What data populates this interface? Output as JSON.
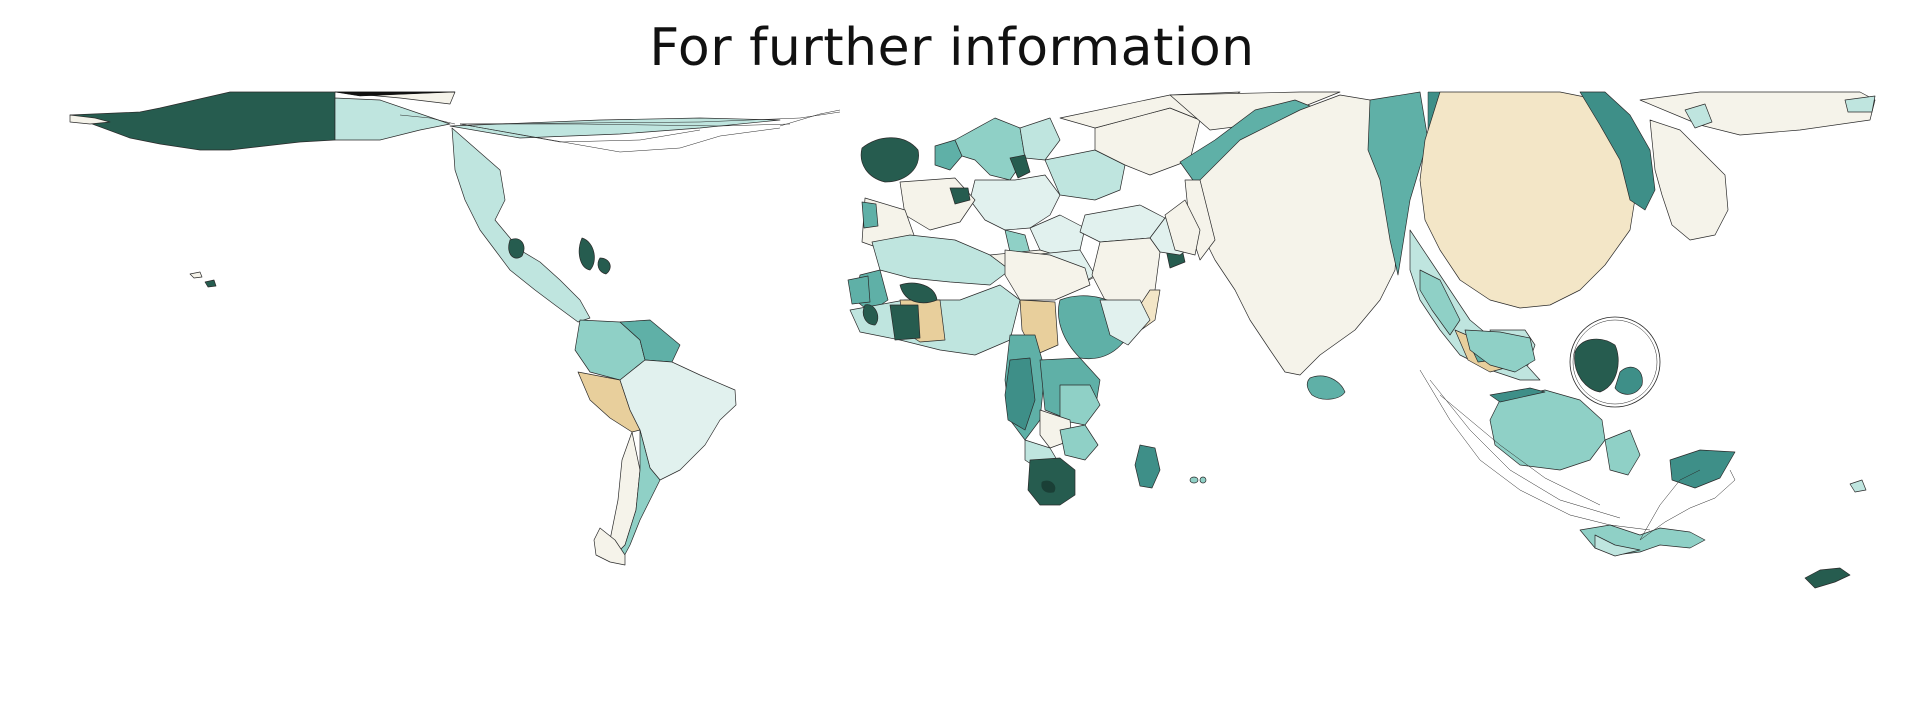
{
  "title": "For further information",
  "palette": {
    "cream": "#f5f3ea",
    "sand": "#f3e6c7",
    "tan": "#e8cf9c",
    "mint-light": "#e1f1ee",
    "mint": "#bfe5df",
    "teal-light": "#8fd0c6",
    "teal": "#5fb0a7",
    "teal-mid": "#3e8f88",
    "teal-dark": "#265c4f"
  },
  "map": {
    "type": "cartogram",
    "region_colors": {
      "north_america_canada": "teal-dark",
      "north_america_us": "mint",
      "greenland_strip": "cream",
      "central_america": "mint",
      "caribbean": "teal-dark",
      "colombia": "teal-light",
      "venezuela": "teal",
      "peru": "tan",
      "brazil": "mint-light",
      "chile": "cream",
      "argentina": "teal-light",
      "uk": "teal-dark",
      "scandinavia": "teal-light",
      "europe_central": "mint-light",
      "russia_west": "cream",
      "iberia": "cream",
      "north_africa_west": "mint",
      "north_africa_east": "cream",
      "middle_east": "cream",
      "west_africa": "mint",
      "central_africa": "teal",
      "east_africa": "teal",
      "southern_africa": "teal-dark",
      "madagascar": "teal-mid",
      "india": "cream",
      "china": "sand",
      "russia_east": "teal",
      "japan": "cream",
      "southeast_asia": "mint",
      "philippines_ring": "teal-dark",
      "indonesia": "teal-light",
      "australia": "teal-light",
      "new_zealand": "teal-dark"
    }
  }
}
